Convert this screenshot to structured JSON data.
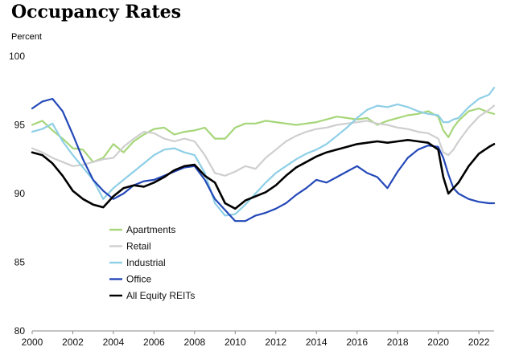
{
  "chart_data": {
    "type": "line",
    "title": "Occupancy Rates",
    "ylabel": "Percent",
    "xlabel": "",
    "xlim": [
      2000,
      2022.75
    ],
    "ylim": [
      80,
      100
    ],
    "yticks": [
      80,
      85,
      90,
      95,
      100
    ],
    "xticks": [
      2000,
      2002,
      2004,
      2006,
      2008,
      2010,
      2012,
      2014,
      2016,
      2018,
      2020,
      2022
    ],
    "grid": false,
    "legend_position": "center-left",
    "series": [
      {
        "name": "Apartments",
        "color": "#a6d679",
        "points": [
          [
            2000,
            95.0
          ],
          [
            2000.5,
            95.3
          ],
          [
            2001,
            94.6
          ],
          [
            2001.5,
            94.0
          ],
          [
            2002,
            93.3
          ],
          [
            2002.5,
            93.2
          ],
          [
            2003,
            92.3
          ],
          [
            2003.5,
            92.6
          ],
          [
            2004,
            93.6
          ],
          [
            2004.5,
            93.0
          ],
          [
            2005,
            93.8
          ],
          [
            2005.5,
            94.3
          ],
          [
            2006,
            94.7
          ],
          [
            2006.5,
            94.8
          ],
          [
            2007,
            94.3
          ],
          [
            2007.5,
            94.5
          ],
          [
            2008,
            94.6
          ],
          [
            2008.5,
            94.8
          ],
          [
            2009,
            94.0
          ],
          [
            2009.5,
            94.0
          ],
          [
            2010,
            94.8
          ],
          [
            2010.5,
            95.1
          ],
          [
            2011,
            95.1
          ],
          [
            2011.5,
            95.3
          ],
          [
            2012,
            95.2
          ],
          [
            2012.5,
            95.1
          ],
          [
            2013,
            95.0
          ],
          [
            2013.5,
            95.1
          ],
          [
            2014,
            95.2
          ],
          [
            2014.5,
            95.4
          ],
          [
            2015,
            95.6
          ],
          [
            2015.5,
            95.5
          ],
          [
            2016,
            95.4
          ],
          [
            2016.5,
            95.5
          ],
          [
            2017,
            95.0
          ],
          [
            2017.5,
            95.3
          ],
          [
            2018,
            95.5
          ],
          [
            2018.5,
            95.7
          ],
          [
            2019,
            95.8
          ],
          [
            2019.5,
            96.0
          ],
          [
            2020,
            95.6
          ],
          [
            2020.25,
            94.6
          ],
          [
            2020.5,
            94.1
          ],
          [
            2020.75,
            94.8
          ],
          [
            2021,
            95.3
          ],
          [
            2021.5,
            96.0
          ],
          [
            2022,
            96.2
          ],
          [
            2022.5,
            95.9
          ],
          [
            2022.75,
            95.8
          ]
        ]
      },
      {
        "name": "Retail",
        "color": "#cfcfcf",
        "points": [
          [
            2000,
            93.3
          ],
          [
            2000.5,
            93.0
          ],
          [
            2001,
            92.6
          ],
          [
            2001.5,
            92.3
          ],
          [
            2002,
            92.0
          ],
          [
            2002.5,
            92.1
          ],
          [
            2003,
            92.3
          ],
          [
            2003.5,
            92.5
          ],
          [
            2004,
            92.6
          ],
          [
            2004.5,
            93.4
          ],
          [
            2005,
            94.0
          ],
          [
            2005.5,
            94.5
          ],
          [
            2006,
            94.4
          ],
          [
            2006.5,
            94.0
          ],
          [
            2007,
            93.8
          ],
          [
            2007.5,
            94.0
          ],
          [
            2008,
            93.8
          ],
          [
            2008.5,
            92.8
          ],
          [
            2009,
            91.5
          ],
          [
            2009.5,
            91.3
          ],
          [
            2010,
            91.6
          ],
          [
            2010.5,
            92.0
          ],
          [
            2011,
            91.8
          ],
          [
            2011.5,
            92.6
          ],
          [
            2012,
            93.2
          ],
          [
            2012.5,
            93.8
          ],
          [
            2013,
            94.2
          ],
          [
            2013.5,
            94.5
          ],
          [
            2014,
            94.7
          ],
          [
            2014.5,
            94.8
          ],
          [
            2015,
            95.0
          ],
          [
            2015.5,
            95.1
          ],
          [
            2016,
            95.2
          ],
          [
            2016.5,
            95.3
          ],
          [
            2017,
            95.1
          ],
          [
            2017.5,
            95.0
          ],
          [
            2018,
            94.8
          ],
          [
            2018.5,
            94.7
          ],
          [
            2019,
            94.5
          ],
          [
            2019.5,
            94.4
          ],
          [
            2020,
            94.0
          ],
          [
            2020.25,
            93.0
          ],
          [
            2020.5,
            92.8
          ],
          [
            2020.75,
            93.2
          ],
          [
            2021,
            93.8
          ],
          [
            2021.5,
            94.8
          ],
          [
            2022,
            95.6
          ],
          [
            2022.5,
            96.1
          ],
          [
            2022.75,
            96.4
          ]
        ]
      },
      {
        "name": "Industrial",
        "color": "#8ecfe6",
        "points": [
          [
            2000,
            94.5
          ],
          [
            2000.5,
            94.7
          ],
          [
            2001,
            95.1
          ],
          [
            2001.5,
            93.8
          ],
          [
            2002,
            92.8
          ],
          [
            2002.5,
            91.9
          ],
          [
            2003,
            91.0
          ],
          [
            2003.5,
            89.6
          ],
          [
            2004,
            90.4
          ],
          [
            2004.5,
            91.0
          ],
          [
            2005,
            91.6
          ],
          [
            2005.5,
            92.2
          ],
          [
            2006,
            92.8
          ],
          [
            2006.5,
            93.2
          ],
          [
            2007,
            93.3
          ],
          [
            2007.5,
            93.0
          ],
          [
            2008,
            92.8
          ],
          [
            2008.5,
            91.5
          ],
          [
            2009,
            89.3
          ],
          [
            2009.5,
            88.4
          ],
          [
            2010,
            88.5
          ],
          [
            2010.5,
            89.2
          ],
          [
            2011,
            90.0
          ],
          [
            2011.5,
            90.8
          ],
          [
            2012,
            91.5
          ],
          [
            2012.5,
            92.0
          ],
          [
            2013,
            92.5
          ],
          [
            2013.5,
            92.9
          ],
          [
            2014,
            93.2
          ],
          [
            2014.5,
            93.6
          ],
          [
            2015,
            94.2
          ],
          [
            2015.5,
            94.8
          ],
          [
            2016,
            95.5
          ],
          [
            2016.5,
            96.1
          ],
          [
            2017,
            96.4
          ],
          [
            2017.5,
            96.3
          ],
          [
            2018,
            96.5
          ],
          [
            2018.5,
            96.3
          ],
          [
            2019,
            96.0
          ],
          [
            2019.5,
            95.8
          ],
          [
            2020,
            95.7
          ],
          [
            2020.25,
            95.2
          ],
          [
            2020.5,
            95.2
          ],
          [
            2020.75,
            95.4
          ],
          [
            2021,
            95.5
          ],
          [
            2021.5,
            96.3
          ],
          [
            2022,
            96.9
          ],
          [
            2022.5,
            97.2
          ],
          [
            2022.75,
            97.7
          ]
        ]
      },
      {
        "name": "Office",
        "color": "#2348b8",
        "points": [
          [
            2000,
            96.2
          ],
          [
            2000.5,
            96.7
          ],
          [
            2001,
            96.9
          ],
          [
            2001.5,
            96.0
          ],
          [
            2002,
            94.3
          ],
          [
            2002.5,
            92.5
          ],
          [
            2003,
            91.0
          ],
          [
            2003.5,
            90.2
          ],
          [
            2004,
            89.6
          ],
          [
            2004.5,
            90.0
          ],
          [
            2005,
            90.6
          ],
          [
            2005.5,
            90.9
          ],
          [
            2006,
            91.0
          ],
          [
            2006.5,
            91.3
          ],
          [
            2007,
            91.6
          ],
          [
            2007.5,
            91.9
          ],
          [
            2008,
            92.0
          ],
          [
            2008.5,
            91.0
          ],
          [
            2009,
            89.6
          ],
          [
            2009.5,
            88.8
          ],
          [
            2010,
            88.0
          ],
          [
            2010.5,
            88.0
          ],
          [
            2011,
            88.4
          ],
          [
            2011.5,
            88.6
          ],
          [
            2012,
            88.9
          ],
          [
            2012.5,
            89.3
          ],
          [
            2013,
            89.9
          ],
          [
            2013.5,
            90.4
          ],
          [
            2014,
            91.0
          ],
          [
            2014.5,
            90.8
          ],
          [
            2015,
            91.2
          ],
          [
            2015.5,
            91.6
          ],
          [
            2016,
            92.0
          ],
          [
            2016.5,
            91.5
          ],
          [
            2017,
            91.2
          ],
          [
            2017.5,
            90.4
          ],
          [
            2018,
            91.6
          ],
          [
            2018.5,
            92.6
          ],
          [
            2019,
            93.2
          ],
          [
            2019.5,
            93.5
          ],
          [
            2020,
            93.4
          ],
          [
            2020.25,
            92.6
          ],
          [
            2020.5,
            91.4
          ],
          [
            2020.75,
            90.4
          ],
          [
            2021,
            90.0
          ],
          [
            2021.5,
            89.6
          ],
          [
            2022,
            89.4
          ],
          [
            2022.5,
            89.3
          ],
          [
            2022.75,
            89.3
          ]
        ]
      },
      {
        "name": "All Equity REITs",
        "color": "#000000",
        "points": [
          [
            2000,
            93.0
          ],
          [
            2000.5,
            92.8
          ],
          [
            2001,
            92.2
          ],
          [
            2001.5,
            91.3
          ],
          [
            2002,
            90.2
          ],
          [
            2002.5,
            89.6
          ],
          [
            2003,
            89.2
          ],
          [
            2003.5,
            89.0
          ],
          [
            2004,
            89.8
          ],
          [
            2004.5,
            90.4
          ],
          [
            2005,
            90.6
          ],
          [
            2005.5,
            90.5
          ],
          [
            2006,
            90.8
          ],
          [
            2006.5,
            91.2
          ],
          [
            2007,
            91.7
          ],
          [
            2007.5,
            92.0
          ],
          [
            2008,
            92.1
          ],
          [
            2008.5,
            91.3
          ],
          [
            2009,
            90.8
          ],
          [
            2009.5,
            89.3
          ],
          [
            2010,
            88.9
          ],
          [
            2010.5,
            89.5
          ],
          [
            2011,
            89.8
          ],
          [
            2011.5,
            90.1
          ],
          [
            2012,
            90.6
          ],
          [
            2012.5,
            91.3
          ],
          [
            2013,
            91.9
          ],
          [
            2013.5,
            92.3
          ],
          [
            2014,
            92.7
          ],
          [
            2014.5,
            93.0
          ],
          [
            2015,
            93.2
          ],
          [
            2015.5,
            93.4
          ],
          [
            2016,
            93.6
          ],
          [
            2016.5,
            93.7
          ],
          [
            2017,
            93.8
          ],
          [
            2017.5,
            93.7
          ],
          [
            2018,
            93.8
          ],
          [
            2018.5,
            93.9
          ],
          [
            2019,
            93.8
          ],
          [
            2019.5,
            93.7
          ],
          [
            2020,
            93.2
          ],
          [
            2020.25,
            91.2
          ],
          [
            2020.5,
            90.0
          ],
          [
            2020.75,
            90.4
          ],
          [
            2021,
            90.8
          ],
          [
            2021.5,
            92.0
          ],
          [
            2022,
            92.9
          ],
          [
            2022.5,
            93.4
          ],
          [
            2022.75,
            93.6
          ]
        ]
      }
    ]
  }
}
